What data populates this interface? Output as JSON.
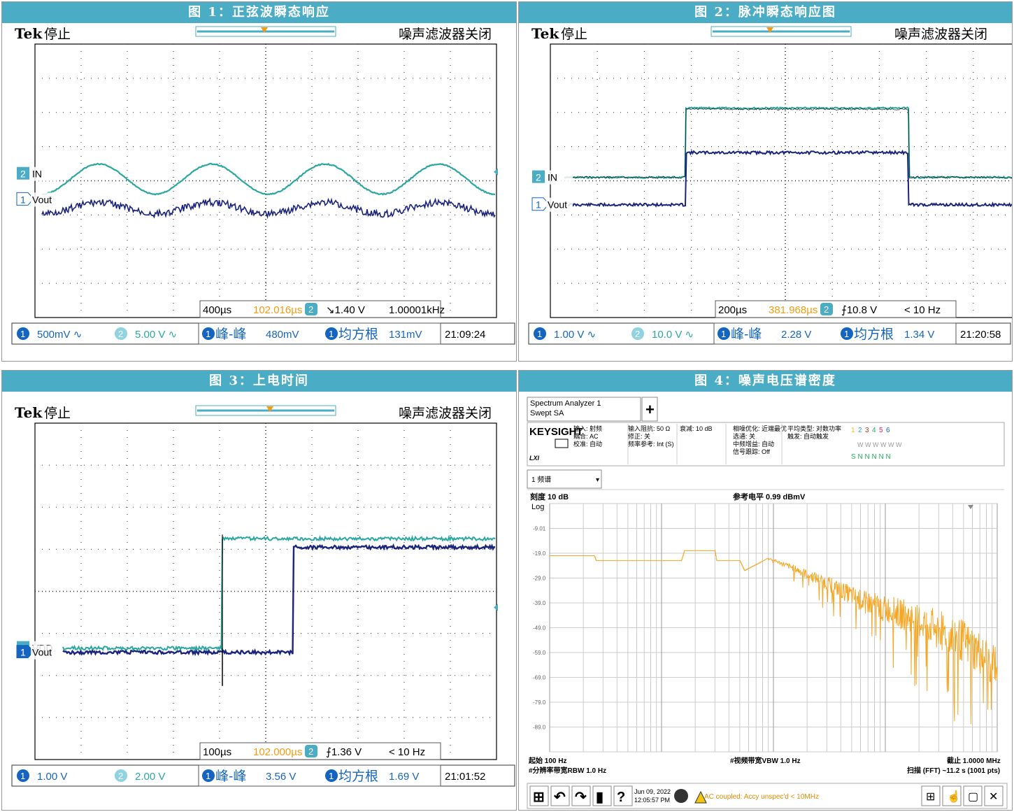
{
  "panels": [
    {
      "title": "图 1：正弦波瞬态响应"
    },
    {
      "title": "图 2：脉冲瞬态响应图"
    },
    {
      "title": "图 3：上电时间"
    },
    {
      "title": "图 4：噪声电压谱密度"
    }
  ],
  "scopes": [
    {
      "brand": "Tek",
      "status": "停止",
      "filter": "噪声滤波器关闭",
      "ch_labels": [
        "IN",
        "Vout"
      ],
      "ch_nums": [
        "2",
        "1"
      ],
      "timebase": "400µs",
      "trig_pos": "102.016µs",
      "trig_ch": "2",
      "trig_level": "↘1.40 V",
      "freq": "1.00001kHz",
      "ch1": "500mV ∿",
      "ch2": "5.00 V ∿",
      "meas1_label": "峰-峰",
      "meas1_value": "480mV",
      "meas2_label": "均方根",
      "meas2_value": "131mV",
      "time": "21:09:24",
      "chart_data": {
        "type": "line",
        "series": [
          {
            "name": "IN",
            "shape": "sine",
            "cycles": 4,
            "amplitude_div": 0.8
          },
          {
            "name": "Vout",
            "shape": "sine",
            "cycles": 4,
            "amplitude_div": 0.3
          }
        ]
      }
    },
    {
      "brand": "Tek",
      "status": "停止",
      "filter": "噪声滤波器关闭",
      "ch_labels": [
        "IN",
        "Vout"
      ],
      "ch_nums": [
        "2",
        "1"
      ],
      "timebase": "200µs",
      "trig_pos": "381.968µs",
      "trig_ch": "2",
      "trig_level": "⨍10.8 V",
      "freq": "< 10 Hz",
      "ch1": "1.00 V ∿",
      "ch2": "10.0 V ∿",
      "meas1_label": "峰-峰",
      "meas1_value": "2.28 V",
      "meas2_label": "均方根",
      "meas2_value": "1.34 V",
      "time": "21:20:58",
      "chart_data": {
        "type": "line",
        "series": [
          {
            "name": "IN",
            "shape": "pulse",
            "high_div": 4.05,
            "low_div": 0
          },
          {
            "name": "Vout",
            "shape": "pulse",
            "high_div": 3.05,
            "low_div": 0
          }
        ]
      }
    },
    {
      "brand": "Tek",
      "status": "停止",
      "filter": "噪声滤波器关闭",
      "ch_labels": [
        "VDD",
        "Vout"
      ],
      "ch_nums": [
        "2",
        "1"
      ],
      "timebase": "100µs",
      "trig_pos": "102.000µs",
      "trig_ch": "2",
      "trig_level": "⨍1.36 V",
      "freq": "< 10 Hz",
      "ch1": "1.00 V",
      "ch2": "2.00 V",
      "meas1_label": "峰-峰",
      "meas1_value": "3.56 V",
      "meas2_label": "均方根",
      "meas2_value": "1.69 V",
      "time": "21:01:52",
      "chart_data": {
        "type": "line",
        "series": [
          {
            "name": "VDD",
            "shape": "step",
            "high_div": 2.5
          },
          {
            "name": "Vout",
            "shape": "step",
            "high_div": 2.35
          }
        ]
      }
    }
  ],
  "sa": {
    "name1": "Spectrum Analyzer 1",
    "name2": "Swept SA",
    "add": "+",
    "brand": "KEYSIGHT",
    "lxi": "LXI",
    "col1": [
      "输入: 射频",
      "耦合: AC",
      "校准: 自动"
    ],
    "col2": [
      "输入阻抗: 50 Ω",
      "修正: 关",
      "频率参考: Int (S)"
    ],
    "col3": [
      "衰减: 10 dB"
    ],
    "col4": [
      "相噪优化: 近端最优",
      "选通: 关",
      "中频增益: 自动",
      "信号跟踪: Off"
    ],
    "col5": [
      "平均类型: 对数功率",
      "触发: 自动触发"
    ],
    "traces": "1 2 3 4 5 6",
    "trace_w": "W W W W W W",
    "trace_n": "S N N N N N",
    "dropdown": "1 频谱",
    "scale": "刻度 10 dB",
    "log": "Log",
    "ref": "参考电平 0.99 dBmV",
    "ylabels": [
      "-9.01",
      "-19.0",
      "-29.0",
      "-39.0",
      "-49.0",
      "-59.0",
      "-69.0",
      "-79.0",
      "-89.0"
    ],
    "start": "起始 100 Hz",
    "rbw": "#分辨率带宽RBW 1.0 Hz",
    "vbw": "#视频带宽VBW 1.0 Hz",
    "stop": "截止 1.0000 MHz",
    "sweep": "扫描 (FFT) ~11.2 s (1001 pts)",
    "date": "Jun 09, 2022",
    "clock": "12:05:57 PM",
    "warn": "AC coupled: Accy unspec'd < 10MHz",
    "chart_data": {
      "type": "line",
      "x_scale": "log",
      "x_range_hz": [
        100,
        1000000
      ],
      "y_range_dbmv": [
        -99,
        0.99
      ],
      "series": [
        {
          "name": "trace1",
          "points_hz_dbmv": [
            [
              100,
              -20
            ],
            [
              250,
              -20
            ],
            [
              260,
              -22
            ],
            [
              1500,
              -22
            ],
            [
              1600,
              -18
            ],
            [
              3000,
              -18
            ],
            [
              3100,
              -22
            ],
            [
              5000,
              -22
            ],
            [
              5500,
              -26
            ],
            [
              9000,
              -21
            ],
            [
              15000,
              -25
            ],
            [
              30000,
              -31
            ],
            [
              60000,
              -38
            ],
            [
              150000,
              -44
            ],
            [
              400000,
              -52
            ],
            [
              1000000,
              -64
            ]
          ]
        }
      ]
    }
  }
}
